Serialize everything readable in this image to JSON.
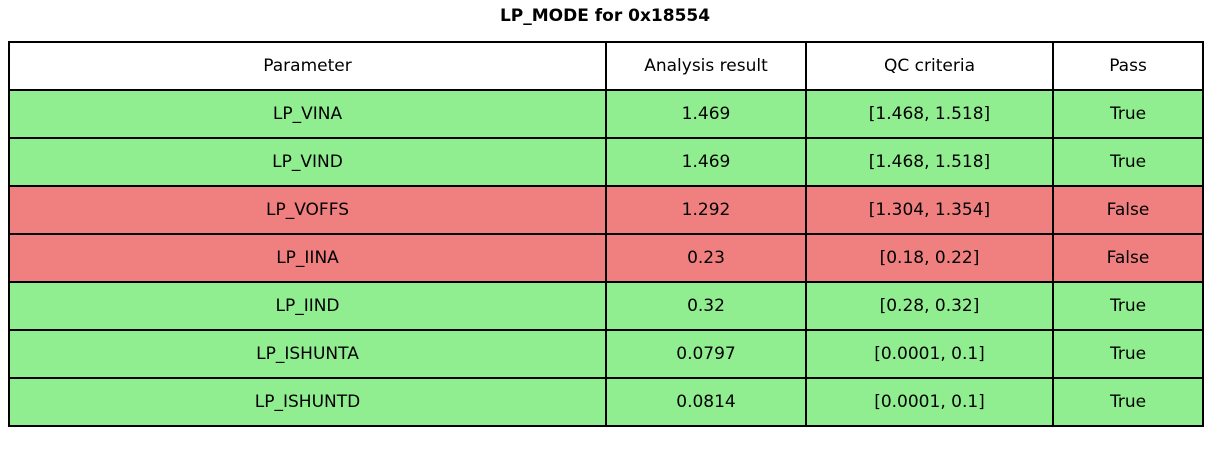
{
  "colors": {
    "pass_green": "#90EE90",
    "fail_red": "#F08080",
    "border": "#000000",
    "header_bg": "#FFFFFF",
    "text": "#000000"
  },
  "chart_data": {
    "type": "table",
    "title": "LP_MODE for 0x18554",
    "columns": [
      "Parameter",
      "Analysis result",
      "QC criteria",
      "Pass"
    ],
    "rows": [
      {
        "parameter": "LP_VINA",
        "result": "1.469",
        "criteria": "[1.468, 1.518]",
        "pass": "True"
      },
      {
        "parameter": "LP_VIND",
        "result": "1.469",
        "criteria": "[1.468, 1.518]",
        "pass": "True"
      },
      {
        "parameter": "LP_VOFFS",
        "result": "1.292",
        "criteria": "[1.304, 1.354]",
        "pass": "False"
      },
      {
        "parameter": "LP_IINA",
        "result": "0.23",
        "criteria": "[0.18, 0.22]",
        "pass": "False"
      },
      {
        "parameter": "LP_IIND",
        "result": "0.32",
        "criteria": "[0.28, 0.32]",
        "pass": "True"
      },
      {
        "parameter": "LP_ISHUNTA",
        "result": "0.0797",
        "criteria": "[0.0001, 0.1]",
        "pass": "True"
      },
      {
        "parameter": "LP_ISHUNTD",
        "result": "0.0814",
        "criteria": "[0.0001, 0.1]",
        "pass": "True"
      }
    ]
  }
}
